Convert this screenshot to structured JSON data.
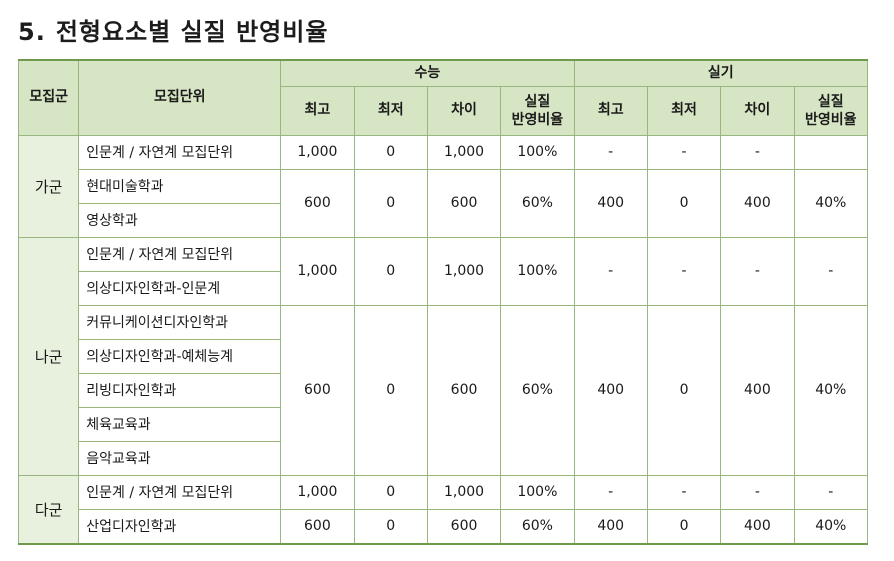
{
  "title": {
    "number": "5.",
    "text": "전형요소별 실질 반영비율"
  },
  "header": {
    "group": "모집군",
    "unit": "모집단위",
    "suneung": "수능",
    "silgi": "실기",
    "sub": {
      "max": "최고",
      "min": "최저",
      "diff": "차이",
      "ratio_l1": "실질",
      "ratio_l2": "반영비율"
    }
  },
  "groups": {
    "ga": "가군",
    "na": "나군",
    "da": "다군"
  },
  "units": {
    "ga1": "인문계 / 자연계 모집단위",
    "ga2": "현대미술학과",
    "ga3": "영상학과",
    "na1": "인문계 / 자연계 모집단위",
    "na2": "의상디자인학과-인문계",
    "na3": "커뮤니케이션디자인학과",
    "na4": "의상디자인학과-예체능계",
    "na5": "리빙디자인학과",
    "na6": "체육교육과",
    "na7": "음악교육과",
    "da1": "인문계 / 자연계 모집단위",
    "da2": "산업디자인학과"
  },
  "values": {
    "ga1": {
      "s_max": "1,000",
      "s_min": "0",
      "s_diff": "1,000",
      "s_ratio": "100%",
      "p_max": "-",
      "p_min": "-",
      "p_diff": "-",
      "p_ratio": ""
    },
    "ga23": {
      "s_max": "600",
      "s_min": "0",
      "s_diff": "600",
      "s_ratio": "60%",
      "p_max": "400",
      "p_min": "0",
      "p_diff": "400",
      "p_ratio": "40%"
    },
    "na12": {
      "s_max": "1,000",
      "s_min": "0",
      "s_diff": "1,000",
      "s_ratio": "100%",
      "p_max": "-",
      "p_min": "-",
      "p_diff": "-",
      "p_ratio": "-"
    },
    "na37": {
      "s_max": "600",
      "s_min": "0",
      "s_diff": "600",
      "s_ratio": "60%",
      "p_max": "400",
      "p_min": "0",
      "p_diff": "400",
      "p_ratio": "40%"
    },
    "da1": {
      "s_max": "1,000",
      "s_min": "0",
      "s_diff": "1,000",
      "s_ratio": "100%",
      "p_max": "-",
      "p_min": "-",
      "p_diff": "-",
      "p_ratio": "-"
    },
    "da2": {
      "s_max": "600",
      "s_min": "0",
      "s_diff": "600",
      "s_ratio": "60%",
      "p_max": "400",
      "p_min": "0",
      "p_diff": "400",
      "p_ratio": "40%"
    }
  }
}
